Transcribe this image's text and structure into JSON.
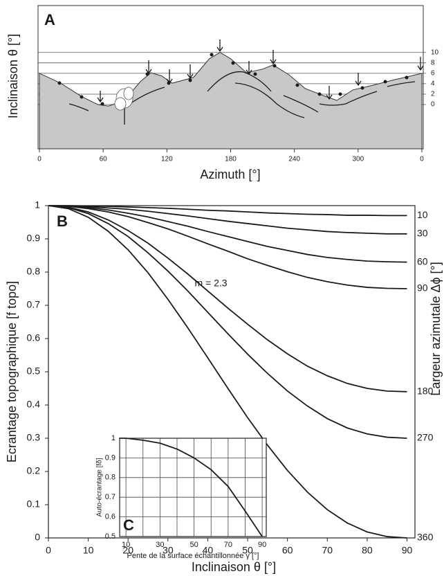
{
  "chart_data": [
    {
      "type": "area",
      "panel_label": "A",
      "xlabel": "Azimuth [°]",
      "ylabel": "Inclinaison θ [°]",
      "x": [
        0,
        20,
        40,
        55,
        65,
        80,
        95,
        105,
        115,
        125,
        145,
        160,
        170,
        180,
        195,
        210,
        220,
        235,
        250,
        270,
        280,
        295,
        310,
        335,
        350,
        360
      ],
      "values": [
        6,
        4.1,
        1.5,
        0,
        -0.3,
        0.8,
        4.4,
        6.1,
        5.5,
        4.1,
        5.2,
        8.8,
        10,
        8.8,
        6.1,
        6.8,
        7.6,
        5.7,
        3.1,
        1.5,
        0.8,
        2.8,
        3.5,
        4.8,
        5.5,
        6
      ],
      "xlim": [
        0,
        360
      ],
      "ylim": [
        -8.5,
        19
      ],
      "xticks": [
        0,
        60,
        120,
        180,
        240,
        300,
        {
          "value": 360,
          "label": "0"
        }
      ],
      "yticks": [
        0,
        2,
        4,
        6,
        8,
        10
      ],
      "color": "#c8c8c8"
    },
    {
      "type": "line",
      "panel_label": "B",
      "xlabel": "Inclinaison θ [°]",
      "ylabel": "Ecrantage topographique [f topo]",
      "y2label": "Largeur azimutale Δϕ [°]",
      "annotation": "m = 2.3",
      "x": [
        0,
        5,
        10,
        15,
        20,
        25,
        30,
        35,
        40,
        45,
        50,
        55,
        60,
        65,
        70,
        75,
        80,
        85,
        90
      ],
      "series": [
        {
          "name": "10",
          "values": [
            1,
            1,
            0.999,
            0.998,
            0.996,
            0.994,
            0.992,
            0.989,
            0.986,
            0.984,
            0.981,
            0.978,
            0.976,
            0.974,
            0.973,
            0.971,
            0.971,
            0.97,
            0.97
          ]
        },
        {
          "name": "30",
          "values": [
            1,
            0.999,
            0.997,
            0.993,
            0.989,
            0.983,
            0.976,
            0.969,
            0.961,
            0.953,
            0.946,
            0.939,
            0.932,
            0.927,
            0.922,
            0.919,
            0.917,
            0.915,
            0.915
          ]
        },
        {
          "name": "60",
          "values": [
            1,
            0.999,
            0.994,
            0.987,
            0.977,
            0.966,
            0.952,
            0.938,
            0.922,
            0.907,
            0.892,
            0.877,
            0.865,
            0.853,
            0.844,
            0.838,
            0.833,
            0.831,
            0.83
          ]
        },
        {
          "name": "90",
          "values": [
            1,
            0.998,
            0.991,
            0.981,
            0.967,
            0.949,
            0.93,
            0.908,
            0.885,
            0.863,
            0.84,
            0.82,
            0.801,
            0.784,
            0.771,
            0.761,
            0.754,
            0.751,
            0.75
          ]
        },
        {
          "name": "180",
          "values": [
            1,
            0.995,
            0.981,
            0.957,
            0.925,
            0.887,
            0.842,
            0.794,
            0.743,
            0.692,
            0.643,
            0.596,
            0.554,
            0.517,
            0.488,
            0.465,
            0.45,
            0.442,
            0.44
          ]
        },
        {
          "name": "270",
          "values": [
            1,
            0.994,
            0.976,
            0.946,
            0.907,
            0.858,
            0.803,
            0.743,
            0.679,
            0.615,
            0.553,
            0.495,
            0.442,
            0.397,
            0.359,
            0.331,
            0.313,
            0.303,
            0.3
          ]
        },
        {
          "name": "360",
          "values": [
            1,
            0.991,
            0.965,
            0.923,
            0.867,
            0.798,
            0.718,
            0.632,
            0.542,
            0.451,
            0.362,
            0.279,
            0.203,
            0.138,
            0.085,
            0.045,
            0.018,
            0.004,
            0
          ]
        }
      ],
      "xlim": [
        0,
        92
      ],
      "ylim": [
        0,
        1
      ],
      "xticks": [
        0,
        10,
        20,
        30,
        40,
        50,
        60,
        70,
        80,
        90
      ],
      "yticks": [
        0,
        0.1,
        0.2,
        0.3,
        0.4,
        0.5,
        0.6,
        0.7,
        0.8,
        0.9,
        1
      ],
      "color": "#1a1a1a"
    },
    {
      "type": "line",
      "panel_label": "C",
      "xlabel": "Pente de la surface échantillonnée γ [°]",
      "ylabel": "Auto-écrantage [fδ]",
      "x": [
        6,
        10,
        20,
        30,
        40,
        50,
        60,
        70,
        80,
        90
      ],
      "values": [
        1,
        1,
        0.99,
        0.975,
        0.945,
        0.9,
        0.84,
        0.755,
        0.63,
        0.5
      ],
      "xlim": [
        6.3,
        92.4
      ],
      "ylim": [
        0.5,
        1
      ],
      "xticks": [
        10,
        30,
        50,
        70,
        90
      ],
      "xgrid": [
        20,
        40,
        60,
        80
      ],
      "yticks": [
        0.5,
        0.6,
        0.7,
        0.8,
        0.9,
        1
      ],
      "grid": true,
      "color": "#1a1a1a"
    }
  ]
}
